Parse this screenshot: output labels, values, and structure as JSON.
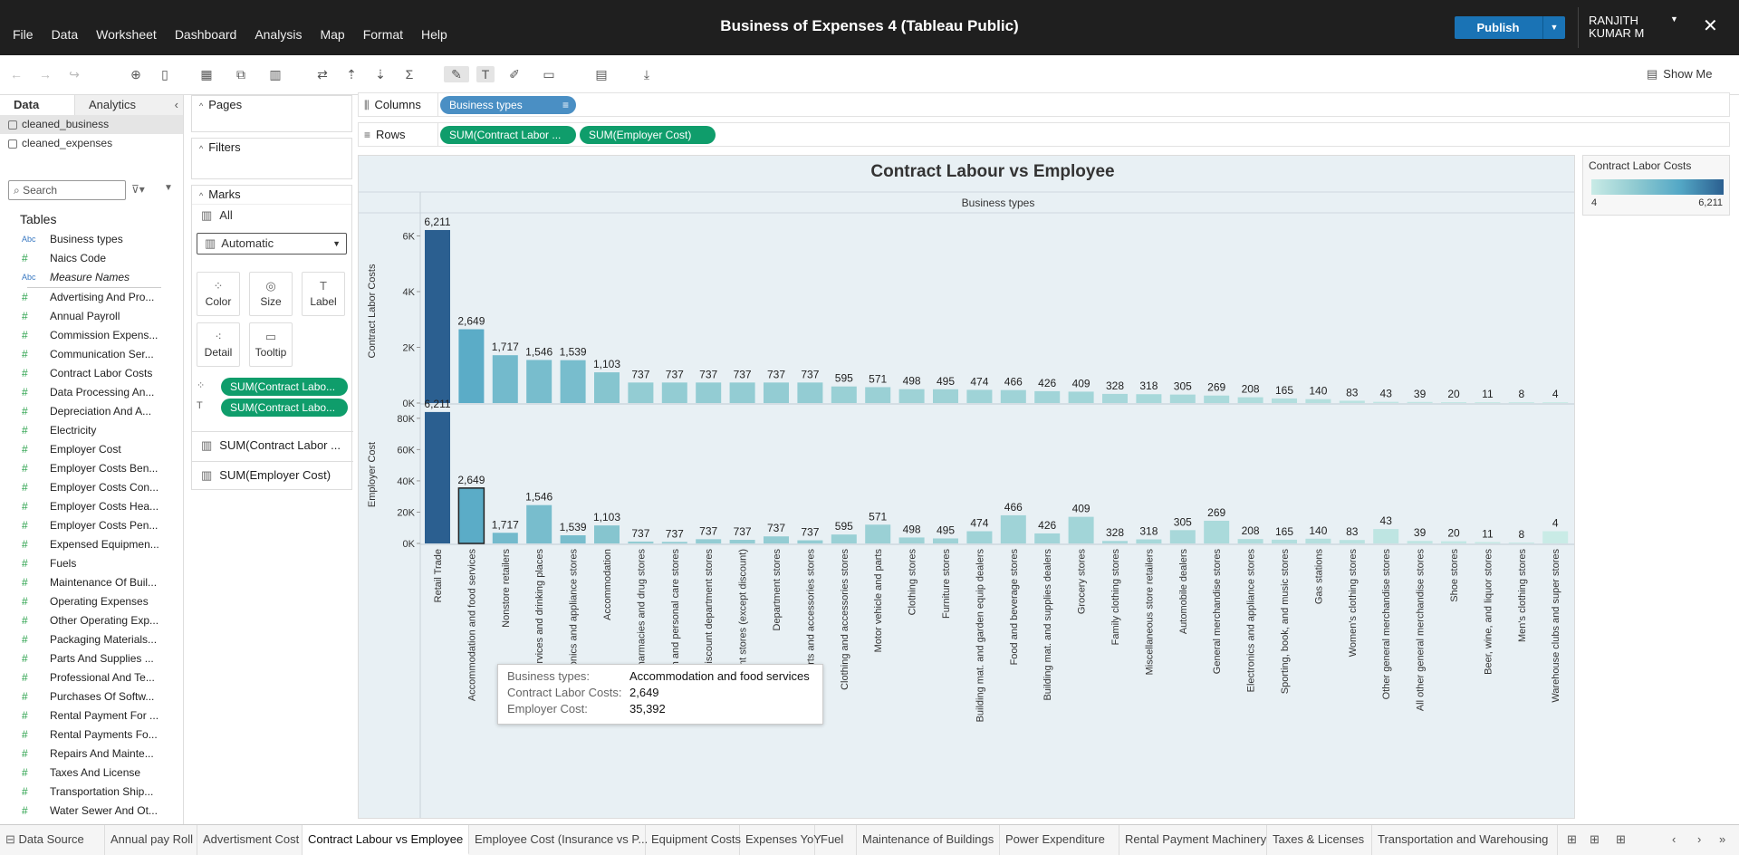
{
  "app": {
    "title": "Business of Expenses 4 (Tableau Public)",
    "user_line1": "RANJITH",
    "user_line2": "KUMAR M",
    "publish": "Publish"
  },
  "menu": [
    "File",
    "Data",
    "Worksheet",
    "Dashboard",
    "Analysis",
    "Map",
    "Format",
    "Help"
  ],
  "toolbar": {
    "show_me": "Show Me"
  },
  "side": {
    "tab_data": "Data",
    "tab_analytics": "Analytics",
    "sources": [
      "cleaned_business",
      "cleaned_expenses"
    ],
    "search_placeholder": "Search",
    "tables_header": "Tables",
    "fields": [
      {
        "type": "Abc",
        "name": "Business types"
      },
      {
        "type": "#",
        "name": "Naics Code"
      },
      {
        "type": "Abc",
        "name": "Measure Names",
        "italic": true
      },
      {
        "type": "#",
        "name": "Advertising And Pro..."
      },
      {
        "type": "#",
        "name": "Annual Payroll"
      },
      {
        "type": "#",
        "name": "Commission Expens..."
      },
      {
        "type": "#",
        "name": "Communication Ser..."
      },
      {
        "type": "#",
        "name": "Contract Labor Costs"
      },
      {
        "type": "#",
        "name": "Data Processing An..."
      },
      {
        "type": "#",
        "name": "Depreciation And A..."
      },
      {
        "type": "#",
        "name": "Electricity"
      },
      {
        "type": "#",
        "name": "Employer Cost"
      },
      {
        "type": "#",
        "name": "Employer Costs Ben..."
      },
      {
        "type": "#",
        "name": "Employer Costs Con..."
      },
      {
        "type": "#",
        "name": "Employer Costs Hea..."
      },
      {
        "type": "#",
        "name": "Employer Costs Pen..."
      },
      {
        "type": "#",
        "name": "Expensed Equipmen..."
      },
      {
        "type": "#",
        "name": "Fuels"
      },
      {
        "type": "#",
        "name": "Maintenance Of Buil..."
      },
      {
        "type": "#",
        "name": "Operating Expenses"
      },
      {
        "type": "#",
        "name": "Other Operating Exp..."
      },
      {
        "type": "#",
        "name": "Packaging Materials..."
      },
      {
        "type": "#",
        "name": "Parts And Supplies ..."
      },
      {
        "type": "#",
        "name": "Professional And Te..."
      },
      {
        "type": "#",
        "name": "Purchases Of Softw..."
      },
      {
        "type": "#",
        "name": "Rental Payment For ..."
      },
      {
        "type": "#",
        "name": "Rental Payments Fo..."
      },
      {
        "type": "#",
        "name": "Repairs And Mainte..."
      },
      {
        "type": "#",
        "name": "Taxes And License"
      },
      {
        "type": "#",
        "name": "Transportation Ship..."
      },
      {
        "type": "#",
        "name": "Water Sewer And Ot..."
      }
    ]
  },
  "cards": {
    "pages": "Pages",
    "filters": "Filters",
    "marks": "Marks",
    "all": "All",
    "mark_type": "Automatic",
    "buttons": [
      "Color",
      "Size",
      "Label",
      "Detail",
      "Tooltip"
    ],
    "mark_pills": [
      "SUM(Contract Labo...",
      "SUM(Contract Labo..."
    ],
    "measures": [
      "SUM(Contract Labor ...",
      "SUM(Employer Cost)"
    ]
  },
  "shelves": {
    "columns_label": "Columns",
    "rows_label": "Rows",
    "columns_pill": "Business types",
    "rows_pills": [
      "SUM(Contract Labor ...",
      "SUM(Employer Cost)"
    ]
  },
  "legend": {
    "title": "Contract Labor Costs",
    "min": "4",
    "max": "6,211"
  },
  "chart_data": {
    "type": "bar",
    "title": "Contract Labour vs Employee",
    "column_header": "Business types",
    "categories": [
      "Retail Trade",
      "Accommodation and food services",
      "Nonstore retailers",
      "Food services and drinking places",
      "Electronics and appliance stores",
      "Accommodation",
      "Pharmacies and drug stores",
      "Health and personal care stores",
      "Discount department stores",
      "Department stores (except discount)",
      "Department stores",
      "Auto parts and accessories stores",
      "Clothing and accessories stores",
      "Motor vehicle and parts",
      "Clothing stores",
      "Furniture stores",
      "Building mat. and garden equip dealers",
      "Food and beverage stores",
      "Building mat. and supplies dealers",
      "Grocery stores",
      "Family clothing stores",
      "Miscellaneous store retailers",
      "Automobile dealers",
      "General merchandise stores",
      "Electronics and appliance stores",
      "Sporting, book, and music stores",
      "Gas stations",
      "Women's clothing stores",
      "Other general merchandise stores",
      "All other general merchandise stores",
      "Shoe stores",
      "Beer, wine, and liquor stores",
      "Men's clothing stores",
      "Warehouse clubs and super stores"
    ],
    "series": [
      {
        "name": "Contract Labor Costs",
        "values": [
          6211,
          2649,
          1717,
          1546,
          1539,
          1103,
          737,
          737,
          737,
          737,
          737,
          737,
          595,
          571,
          498,
          495,
          474,
          466,
          426,
          409,
          328,
          318,
          305,
          269,
          208,
          165,
          140,
          83,
          43,
          39,
          20,
          11,
          8,
          4
        ],
        "ylim": [
          0,
          6600
        ],
        "ticks": [
          "0K",
          "2K",
          "4K",
          "6K"
        ]
      },
      {
        "name": "Employer Cost",
        "values": [
          84000,
          35392,
          6800,
          24500,
          5200,
          11500,
          1200,
          1000,
          2700,
          2300,
          4500,
          2000,
          5700,
          12000,
          3800,
          3200,
          7800,
          18000,
          6400,
          17000,
          1600,
          2600,
          8500,
          14500,
          2800,
          2400,
          3000,
          2200,
          9200,
          1600,
          1400,
          900,
          600,
          7800
        ],
        "ylim": [
          0,
          88000
        ],
        "ticks": [
          "0K",
          "20K",
          "40K",
          "60K",
          "80K"
        ]
      }
    ],
    "labels": [
      "6,211",
      "2,649",
      "1,717",
      "1,546",
      "1,539",
      "1,103",
      "737",
      "737",
      "737",
      "737",
      "737",
      "737",
      "595",
      "571",
      "498",
      "495",
      "474",
      "466",
      "426",
      "409",
      "328",
      "318",
      "305",
      "269",
      "208",
      "165",
      "140",
      "83",
      "43",
      "39",
      "20",
      "11",
      "8",
      "4"
    ],
    "tooltip": {
      "rows": [
        [
          "Business types:",
          "Accommodation and food services"
        ],
        [
          "Contract Labor Costs:",
          "2,649"
        ],
        [
          "Employer Cost:",
          "35,392"
        ]
      ]
    }
  },
  "sheet_tabs": [
    "Data Source",
    "Annual pay Roll",
    "Advertisment Cost",
    "Contract Labour vs Employee",
    "Employee Cost (Insurance vs P...",
    "Equipment Costs",
    "Expenses YoY",
    "Fuel",
    "Maintenance of Buildings",
    "Power Expenditure",
    "Rental Payment Machinery",
    "Taxes & Licenses",
    "Transportation and Warehousing"
  ],
  "active_tab": "Contract Labour vs Employee"
}
